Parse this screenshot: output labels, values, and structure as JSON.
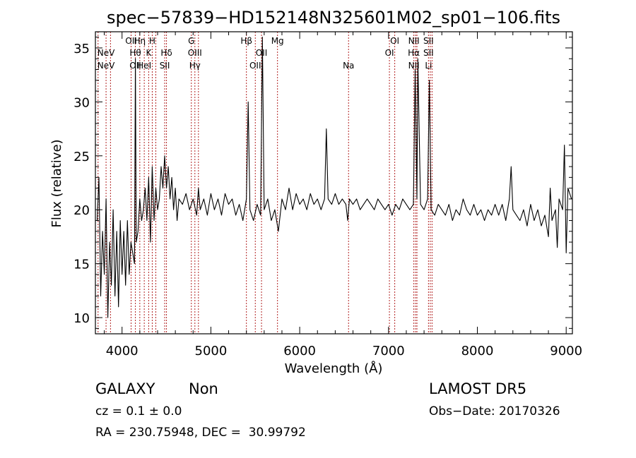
{
  "chart_data": {
    "type": "line",
    "title": "spec−57839−HD152148N325601M02_sp01−106.fits",
    "xlabel": "Wavelength (Å)",
    "ylabel": "Flux (relative)",
    "xlim": [
      3700,
      9070
    ],
    "ylim": [
      8.5,
      36.5
    ],
    "x_ticks": [
      4000,
      5000,
      6000,
      7000,
      8000,
      9000
    ],
    "y_ticks": [
      10,
      15,
      20,
      25,
      30,
      35
    ],
    "grid": false,
    "line_color": "#000000",
    "marker_color": "#b22222",
    "series": [
      {
        "points": [
          [
            3720,
            19
          ],
          [
            3740,
            23
          ],
          [
            3760,
            12
          ],
          [
            3780,
            18
          ],
          [
            3800,
            14
          ],
          [
            3820,
            21
          ],
          [
            3840,
            10
          ],
          [
            3860,
            17
          ],
          [
            3880,
            13
          ],
          [
            3900,
            20
          ],
          [
            3920,
            12
          ],
          [
            3940,
            18
          ],
          [
            3960,
            11
          ],
          [
            3980,
            19
          ],
          [
            4000,
            14
          ],
          [
            4020,
            18
          ],
          [
            4040,
            13
          ],
          [
            4060,
            19
          ],
          [
            4080,
            14
          ],
          [
            4100,
            17
          ],
          [
            4120,
            16
          ],
          [
            4140,
            15
          ],
          [
            4150,
            34
          ],
          [
            4160,
            17
          ],
          [
            4180,
            18
          ],
          [
            4200,
            21
          ],
          [
            4220,
            19
          ],
          [
            4240,
            20
          ],
          [
            4260,
            22
          ],
          [
            4280,
            19
          ],
          [
            4300,
            23
          ],
          [
            4320,
            17
          ],
          [
            4340,
            24
          ],
          [
            4360,
            19
          ],
          [
            4380,
            22
          ],
          [
            4400,
            20
          ],
          [
            4420,
            21
          ],
          [
            4440,
            24
          ],
          [
            4460,
            22
          ],
          [
            4480,
            25
          ],
          [
            4500,
            22
          ],
          [
            4520,
            24
          ],
          [
            4540,
            21
          ],
          [
            4560,
            23
          ],
          [
            4580,
            20
          ],
          [
            4600,
            22
          ],
          [
            4620,
            19
          ],
          [
            4640,
            21
          ],
          [
            4680,
            20.5
          ],
          [
            4720,
            21.5
          ],
          [
            4760,
            20
          ],
          [
            4800,
            21
          ],
          [
            4840,
            19.5
          ],
          [
            4860,
            22
          ],
          [
            4880,
            20
          ],
          [
            4920,
            21
          ],
          [
            4960,
            19.5
          ],
          [
            5000,
            21.5
          ],
          [
            5040,
            20
          ],
          [
            5080,
            21
          ],
          [
            5120,
            19.5
          ],
          [
            5160,
            21.5
          ],
          [
            5200,
            20.5
          ],
          [
            5240,
            21
          ],
          [
            5280,
            19.5
          ],
          [
            5320,
            20.5
          ],
          [
            5360,
            19
          ],
          [
            5400,
            21
          ],
          [
            5420,
            30
          ],
          [
            5440,
            20
          ],
          [
            5480,
            19
          ],
          [
            5520,
            20.5
          ],
          [
            5560,
            19.5
          ],
          [
            5580,
            36
          ],
          [
            5600,
            20
          ],
          [
            5640,
            21
          ],
          [
            5680,
            19
          ],
          [
            5720,
            20
          ],
          [
            5760,
            18
          ],
          [
            5800,
            21
          ],
          [
            5840,
            20
          ],
          [
            5880,
            22
          ],
          [
            5920,
            20
          ],
          [
            5960,
            21.5
          ],
          [
            6000,
            20.5
          ],
          [
            6040,
            21
          ],
          [
            6080,
            20
          ],
          [
            6120,
            21.5
          ],
          [
            6160,
            20.5
          ],
          [
            6200,
            21
          ],
          [
            6240,
            20
          ],
          [
            6280,
            21
          ],
          [
            6300,
            27.5
          ],
          [
            6320,
            21
          ],
          [
            6360,
            20.5
          ],
          [
            6400,
            21.5
          ],
          [
            6440,
            20.5
          ],
          [
            6480,
            21
          ],
          [
            6520,
            20.5
          ],
          [
            6540,
            19
          ],
          [
            6560,
            21
          ],
          [
            6600,
            20.5
          ],
          [
            6640,
            21
          ],
          [
            6680,
            20
          ],
          [
            6720,
            20.5
          ],
          [
            6760,
            21
          ],
          [
            6800,
            20.5
          ],
          [
            6840,
            20
          ],
          [
            6880,
            21
          ],
          [
            6920,
            20.5
          ],
          [
            6960,
            20
          ],
          [
            7000,
            20.5
          ],
          [
            7040,
            19.5
          ],
          [
            7080,
            20.5
          ],
          [
            7120,
            20
          ],
          [
            7160,
            21
          ],
          [
            7200,
            20.5
          ],
          [
            7240,
            20
          ],
          [
            7280,
            20.5
          ],
          [
            7300,
            33
          ],
          [
            7320,
            21
          ],
          [
            7330,
            34
          ],
          [
            7360,
            20.5
          ],
          [
            7400,
            20
          ],
          [
            7440,
            21
          ],
          [
            7460,
            32
          ],
          [
            7480,
            20
          ],
          [
            7520,
            19.5
          ],
          [
            7560,
            20.5
          ],
          [
            7600,
            20
          ],
          [
            7640,
            19.5
          ],
          [
            7680,
            20.5
          ],
          [
            7720,
            19
          ],
          [
            7760,
            20
          ],
          [
            7800,
            19.5
          ],
          [
            7840,
            21
          ],
          [
            7880,
            20
          ],
          [
            7920,
            19.5
          ],
          [
            7960,
            20.5
          ],
          [
            8000,
            19.5
          ],
          [
            8040,
            20
          ],
          [
            8080,
            19
          ],
          [
            8120,
            20
          ],
          [
            8160,
            19.5
          ],
          [
            8200,
            20.5
          ],
          [
            8240,
            19.5
          ],
          [
            8280,
            20.5
          ],
          [
            8320,
            19
          ],
          [
            8360,
            21
          ],
          [
            8380,
            24
          ],
          [
            8400,
            20
          ],
          [
            8440,
            19.5
          ],
          [
            8480,
            19
          ],
          [
            8520,
            20
          ],
          [
            8560,
            18.5
          ],
          [
            8600,
            20.5
          ],
          [
            8640,
            19
          ],
          [
            8680,
            20
          ],
          [
            8720,
            18.5
          ],
          [
            8760,
            19.5
          ],
          [
            8800,
            17.5
          ],
          [
            8820,
            22
          ],
          [
            8840,
            19
          ],
          [
            8880,
            20
          ],
          [
            8900,
            16.5
          ],
          [
            8920,
            21
          ],
          [
            8960,
            20
          ],
          [
            8980,
            26
          ],
          [
            9000,
            16
          ],
          [
            9020,
            22
          ],
          [
            9060,
            21
          ]
        ]
      }
    ],
    "lines": [
      {
        "x": 3730,
        "labels": []
      },
      {
        "x": 3820,
        "labels": [
          {
            "text": "NeV",
            "row": 0
          },
          {
            "text": "NeV",
            "row": 1
          }
        ]
      },
      {
        "x": 3870,
        "labels": []
      },
      {
        "x": 4102,
        "labels": [
          {
            "text": "OII",
            "row": -1
          }
        ]
      },
      {
        "x": 4150,
        "labels": [
          {
            "text": "Hθ",
            "row": 0
          },
          {
            "text": "OII",
            "row": 1
          }
        ]
      },
      {
        "x": 4200,
        "labels": [
          {
            "text": "Hη",
            "row": -1
          }
        ]
      },
      {
        "x": 4250,
        "labels": [
          {
            "text": "HeI",
            "row": 1
          }
        ]
      },
      {
        "x": 4300,
        "labels": [
          {
            "text": "K",
            "row": 0
          }
        ]
      },
      {
        "x": 4340,
        "labels": [
          {
            "text": "H",
            "row": -1
          }
        ]
      },
      {
        "x": 4380,
        "labels": []
      },
      {
        "x": 4480,
        "labels": [
          {
            "text": "SII",
            "row": 1
          }
        ]
      },
      {
        "x": 4500,
        "labels": [
          {
            "text": "Hδ",
            "row": 0
          }
        ]
      },
      {
        "x": 4780,
        "labels": [
          {
            "text": "G",
            "row": -1
          }
        ]
      },
      {
        "x": 4820,
        "labels": [
          {
            "text": "OIII",
            "row": 0
          },
          {
            "text": "Hγ",
            "row": 1
          }
        ]
      },
      {
        "x": 4860,
        "labels": []
      },
      {
        "x": 5400,
        "labels": [
          {
            "text": "Hβ",
            "row": -1
          }
        ]
      },
      {
        "x": 5500,
        "labels": [
          {
            "text": "OII",
            "row": 1
          }
        ]
      },
      {
        "x": 5570,
        "labels": [
          {
            "text": "OII",
            "row": 0
          }
        ]
      },
      {
        "x": 5750,
        "labels": [
          {
            "text": "Mg",
            "row": -1
          }
        ]
      },
      {
        "x": 6550,
        "labels": [
          {
            "text": "Na",
            "row": 1
          }
        ]
      },
      {
        "x": 7010,
        "labels": [
          {
            "text": "OI",
            "row": 0
          }
        ]
      },
      {
        "x": 7070,
        "labels": [
          {
            "text": "OI",
            "row": -1
          }
        ]
      },
      {
        "x": 7285,
        "labels": [
          {
            "text": "NII",
            "row": -1
          },
          {
            "text": "Hα",
            "row": 0
          },
          {
            "text": "NII",
            "row": 1
          }
        ]
      },
      {
        "x": 7305,
        "labels": []
      },
      {
        "x": 7320,
        "labels": []
      },
      {
        "x": 7450,
        "labels": [
          {
            "text": "SII",
            "row": -1
          },
          {
            "text": "SII",
            "row": 0
          },
          {
            "text": "Li",
            "row": 1
          }
        ]
      },
      {
        "x": 7470,
        "labels": []
      },
      {
        "x": 7490,
        "labels": []
      }
    ]
  },
  "info": {
    "class_label": "GALAXY",
    "subclass": "Non",
    "survey": "LAMOST DR5",
    "cz_text": "cz = 0.1 ± 0.0",
    "obs_date": "Obs−Date: 20170326",
    "radec": "RA = 230.75948, DEC =  30.99792"
  }
}
